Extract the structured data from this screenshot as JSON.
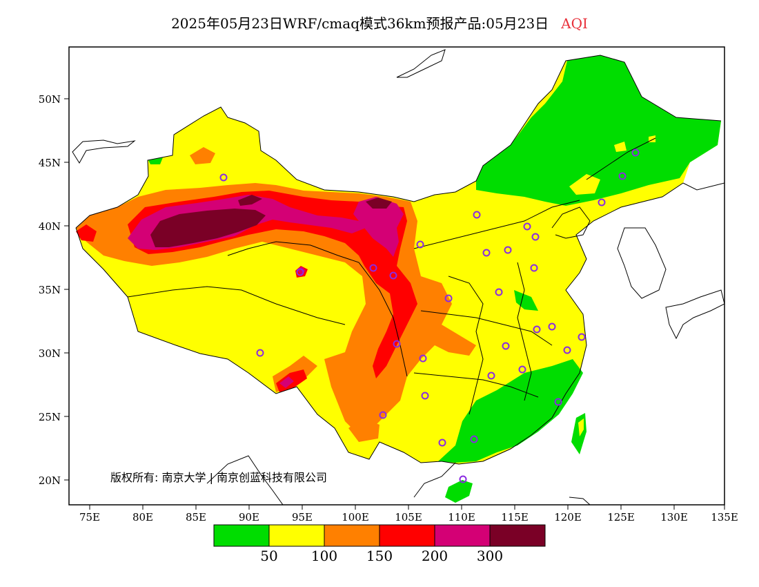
{
  "title": {
    "main": "2025年05月23日WRF/cmaq模式36km预报产品:05月23日",
    "variable": "AQI"
  },
  "colors": {
    "variable_label": "#e8303a",
    "station_marker": "#8a2be2"
  },
  "axes": {
    "lat_labels": [
      "50N",
      "45N",
      "40N",
      "35N",
      "30N",
      "25N",
      "20N"
    ],
    "lon_labels": [
      "75E",
      "80E",
      "85E",
      "90E",
      "95E",
      "100E",
      "105E",
      "110E",
      "115E",
      "120E",
      "125E",
      "130E",
      "135E"
    ]
  },
  "colorbar": {
    "colors": [
      "#00dd00",
      "#ffff00",
      "#ff8000",
      "#ff0000",
      "#d40075",
      "#7a0026"
    ],
    "labels": [
      "50",
      "100",
      "150",
      "200",
      "300"
    ]
  },
  "copyright": "版权所有: 南京大学 | 南京创蓝科技有限公司"
}
